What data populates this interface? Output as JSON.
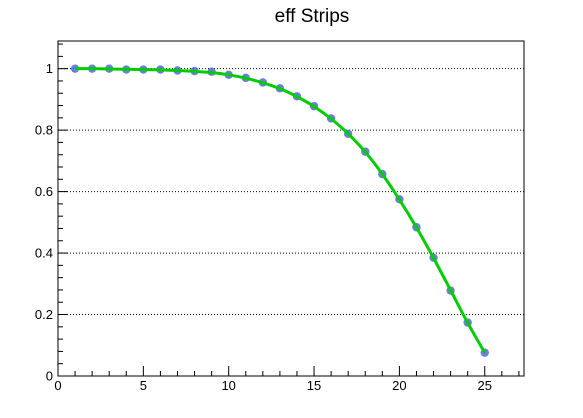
{
  "chart_data": {
    "type": "scatter",
    "title": "eff Strips",
    "xlabel": "",
    "ylabel": "",
    "xlim": [
      0,
      27.3
    ],
    "ylim": [
      0,
      1.09
    ],
    "grid": {
      "x": false,
      "y": true
    },
    "x_ticks": [
      {
        "value": 0,
        "label": "0"
      },
      {
        "value": 5,
        "label": "5"
      },
      {
        "value": 10,
        "label": "10"
      },
      {
        "value": 15,
        "label": "15"
      },
      {
        "value": 20,
        "label": "20"
      },
      {
        "value": 25,
        "label": "25"
      }
    ],
    "y_ticks": [
      {
        "value": 0,
        "label": "0"
      },
      {
        "value": 0.2,
        "label": "0.2"
      },
      {
        "value": 0.4,
        "label": "0.4"
      },
      {
        "value": 0.6,
        "label": "0.6"
      },
      {
        "value": 0.8,
        "label": "0.8"
      },
      {
        "value": 1,
        "label": "1"
      }
    ],
    "series": [
      {
        "kind": "points",
        "color": "#5566dd",
        "x": [
          1,
          2,
          3,
          4,
          5,
          6,
          7,
          8,
          9,
          10,
          11,
          12,
          13,
          14,
          15,
          16,
          17,
          18,
          19,
          20,
          21,
          22,
          23,
          24,
          25
        ],
        "y": [
          1.0,
          1.0,
          1.0,
          0.997,
          0.997,
          0.997,
          0.994,
          0.992,
          0.99,
          0.98,
          0.97,
          0.955,
          0.936,
          0.91,
          0.878,
          0.838,
          0.788,
          0.73,
          0.657,
          0.575,
          0.484,
          0.385,
          0.278,
          0.174,
          0.076
        ]
      },
      {
        "kind": "fit-line",
        "color": "#00cc00",
        "x": [
          1,
          2,
          3,
          4,
          5,
          6,
          7,
          8,
          9,
          10,
          11,
          12,
          13,
          14,
          15,
          16,
          17,
          18,
          19,
          20,
          21,
          22,
          23,
          24,
          25
        ],
        "y": [
          1.0,
          1.0,
          0.999,
          0.998,
          0.997,
          0.996,
          0.994,
          0.991,
          0.987,
          0.98,
          0.969,
          0.954,
          0.935,
          0.909,
          0.877,
          0.837,
          0.788,
          0.729,
          0.657,
          0.574,
          0.483,
          0.384,
          0.279,
          0.173,
          0.076
        ]
      }
    ]
  }
}
